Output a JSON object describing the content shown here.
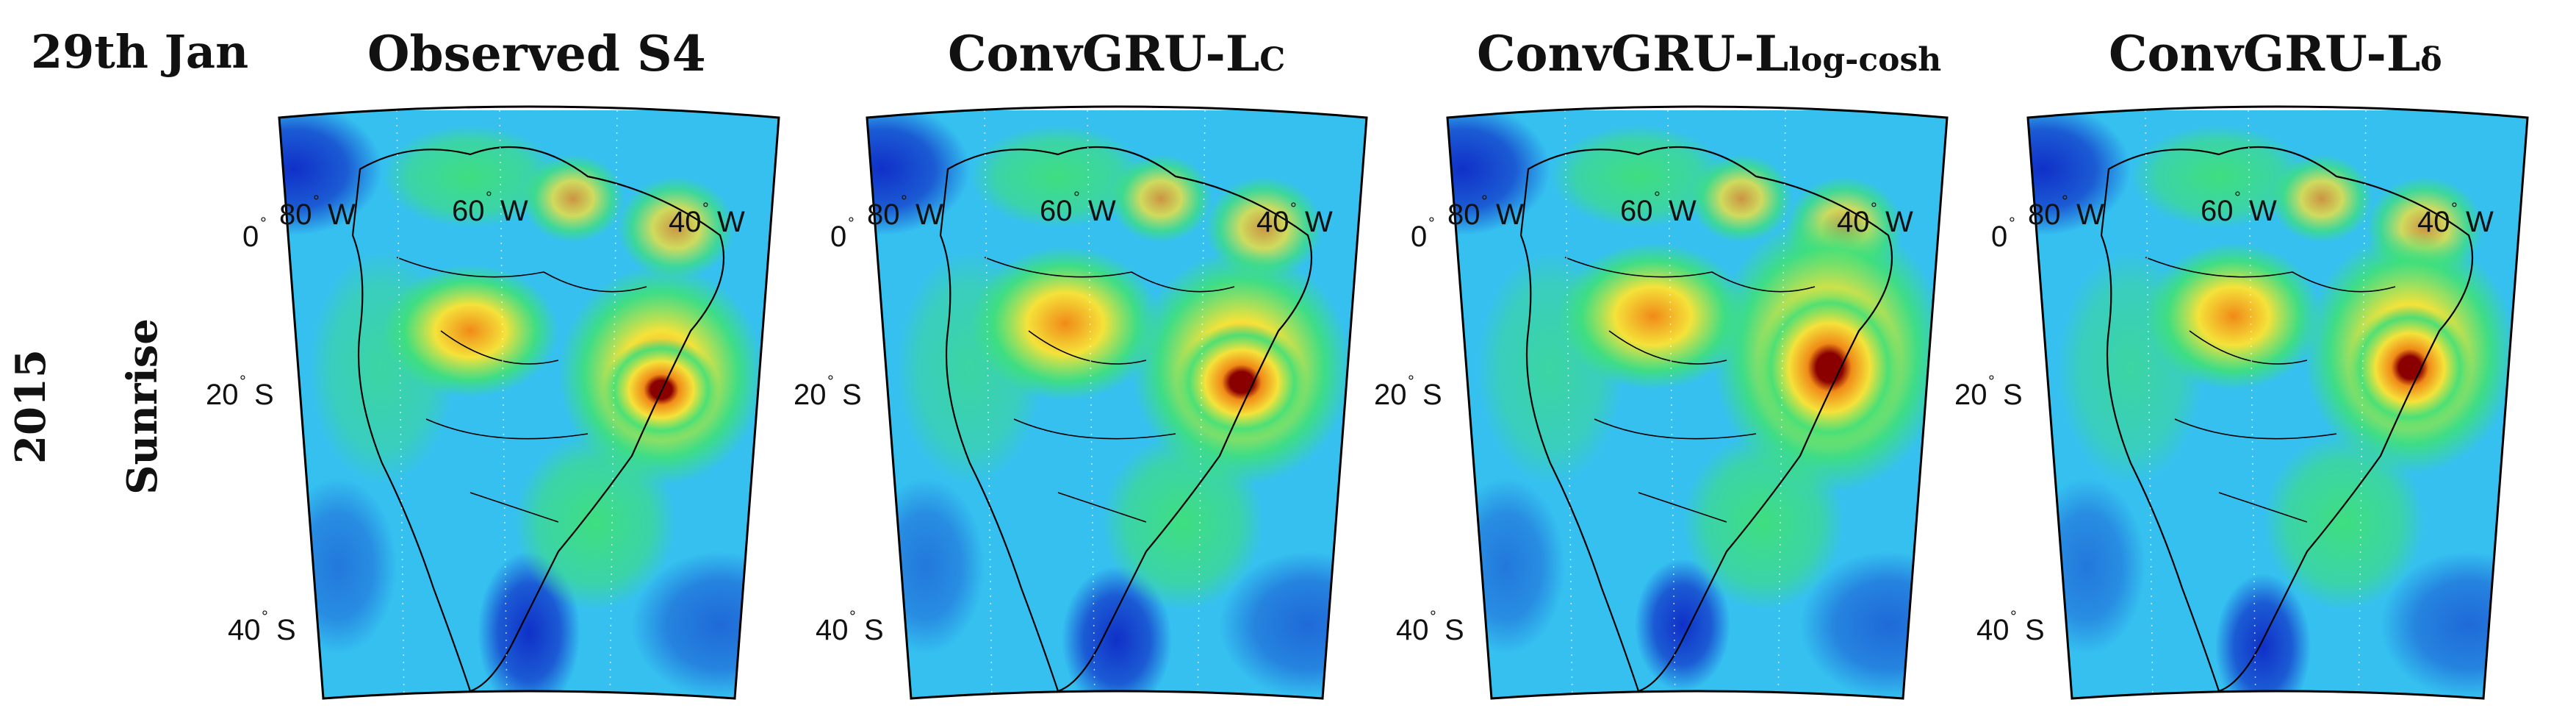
{
  "header": {
    "date": "29th Jan",
    "year": "2015",
    "phase": "Sunrise"
  },
  "panels": [
    {
      "title_main": "Observed S4",
      "title_sub": ""
    },
    {
      "title_main": "ConvGRU-L",
      "title_sub": "C"
    },
    {
      "title_main": "ConvGRU-L",
      "title_sub": "log-cosh"
    },
    {
      "title_main": "ConvGRU-L",
      "title_sub": "δ"
    }
  ],
  "map_labels": {
    "lat_0": "0",
    "lat_20s": "20",
    "lat_40s": "40",
    "lon_80w": "80",
    "lon_60w": "60",
    "lon_40w": "40",
    "deg_symbol": "°",
    "s_hemi": "S",
    "w_hemi": "W"
  },
  "colors": {
    "background_field": "#35c0f0",
    "low": "#1030c8",
    "mid": "#3fe07a",
    "high_yellow": "#f5e23a",
    "high_orange": "#f08a18",
    "peak": "#8a0000"
  }
}
